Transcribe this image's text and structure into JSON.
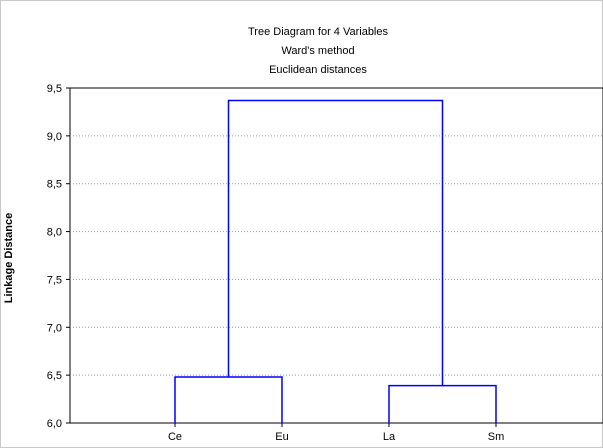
{
  "chart_data": {
    "type": "dendrogram",
    "title": "Tree Diagram for 4   Variables",
    "subtitle": "Ward's method",
    "subtitle2": "Euclidean distances",
    "ylabel": "Linkage Distance",
    "xlabel": "",
    "ylim": [
      6.0,
      9.5
    ],
    "yticks": [
      "6,0",
      "6,5",
      "7,0",
      "7,5",
      "8,0",
      "8,5",
      "9,0",
      "9,5"
    ],
    "ytick_values": [
      6.0,
      6.5,
      7.0,
      7.5,
      8.0,
      8.5,
      9.0,
      9.5
    ],
    "leaves": [
      "Ce",
      "Eu",
      "La",
      "Sm"
    ],
    "merges": [
      {
        "members": [
          "Ce",
          "Eu"
        ],
        "height": 6.48
      },
      {
        "members": [
          "La",
          "Sm"
        ],
        "height": 6.39
      },
      {
        "members": [
          "Ce,Eu",
          "La,Sm"
        ],
        "height": 9.37
      }
    ],
    "grid": true,
    "line_color": "#0000ff",
    "grid_color": "#9a9a9a"
  }
}
